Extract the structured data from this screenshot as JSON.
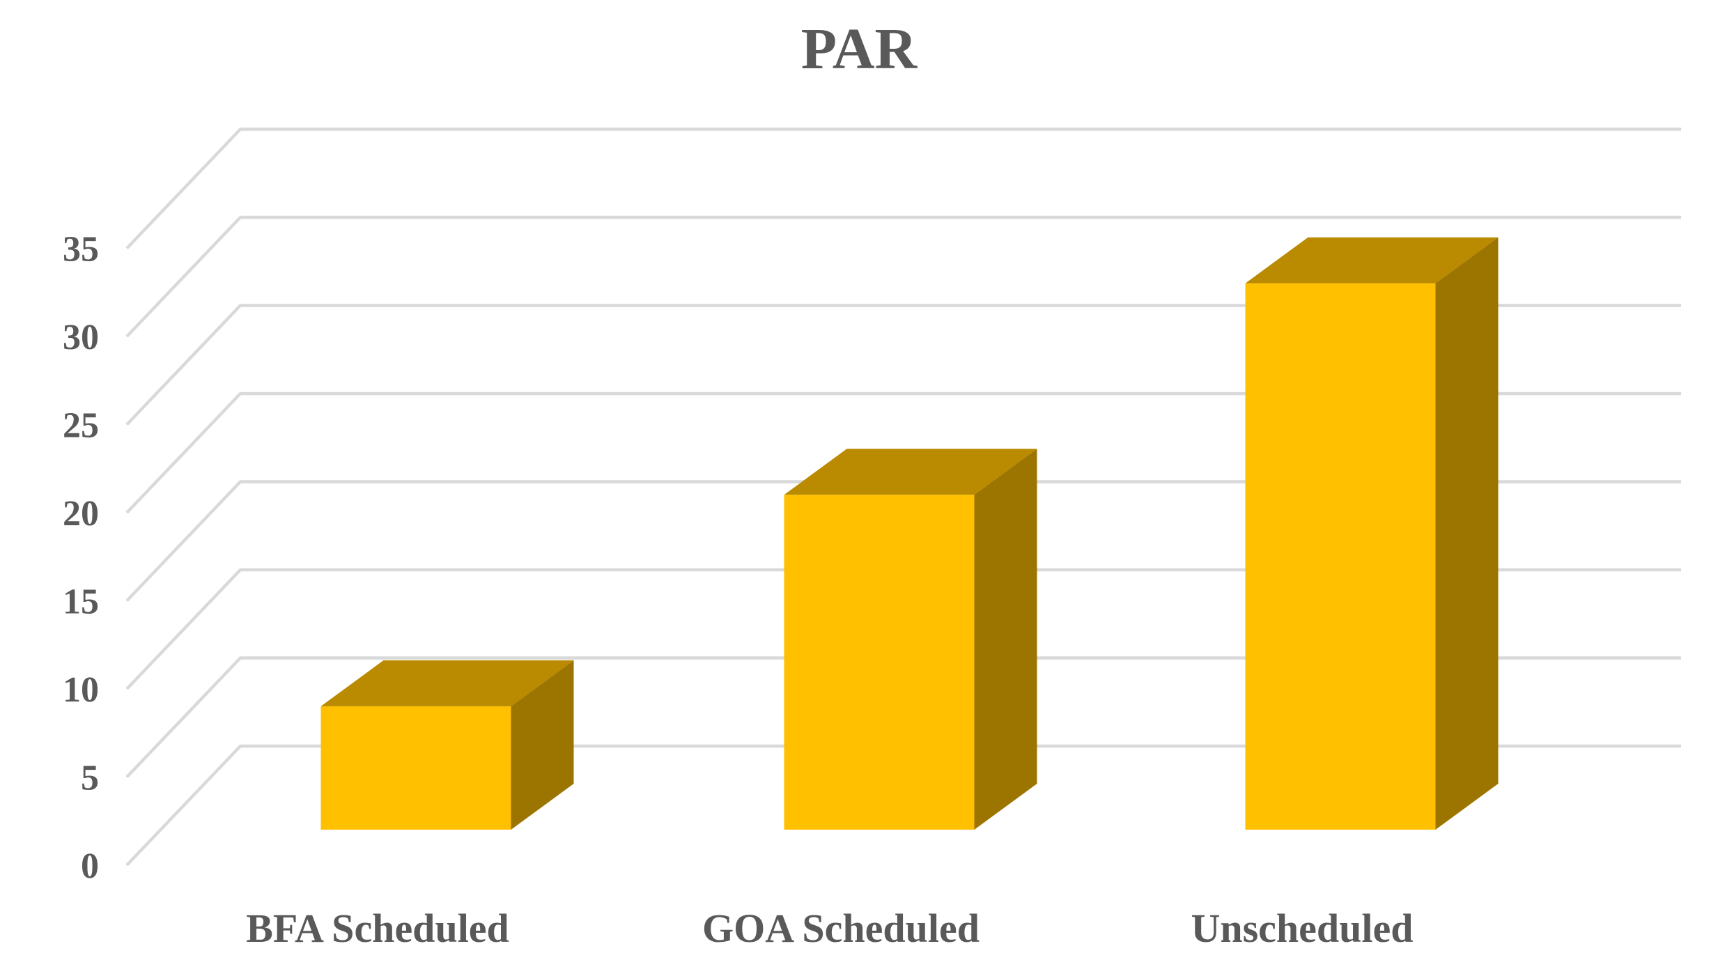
{
  "chart_data": {
    "type": "bar",
    "variant": "3d-column-oblique",
    "title": "PAR",
    "categories": [
      "BFA Scheduled",
      "GOA Scheduled",
      "Unscheduled"
    ],
    "series": [
      {
        "name": "PAR",
        "values": [
          7,
          19,
          31
        ]
      }
    ],
    "values": [
      7,
      19,
      31
    ],
    "xlabel": "",
    "ylabel": "",
    "ylim": [
      0,
      35
    ],
    "ytick_step": 5,
    "ytick_labels": [
      "0",
      "5",
      "10",
      "15",
      "20",
      "25",
      "30",
      "35"
    ],
    "grid": true,
    "legend_position": "none",
    "colors": {
      "bar_front": "#FFC000",
      "bar_top": "#BA8A00",
      "bar_side": "#9C7500",
      "gridline": "#D9D9D9",
      "text": "#595959",
      "background": "#FFFFFF"
    }
  }
}
